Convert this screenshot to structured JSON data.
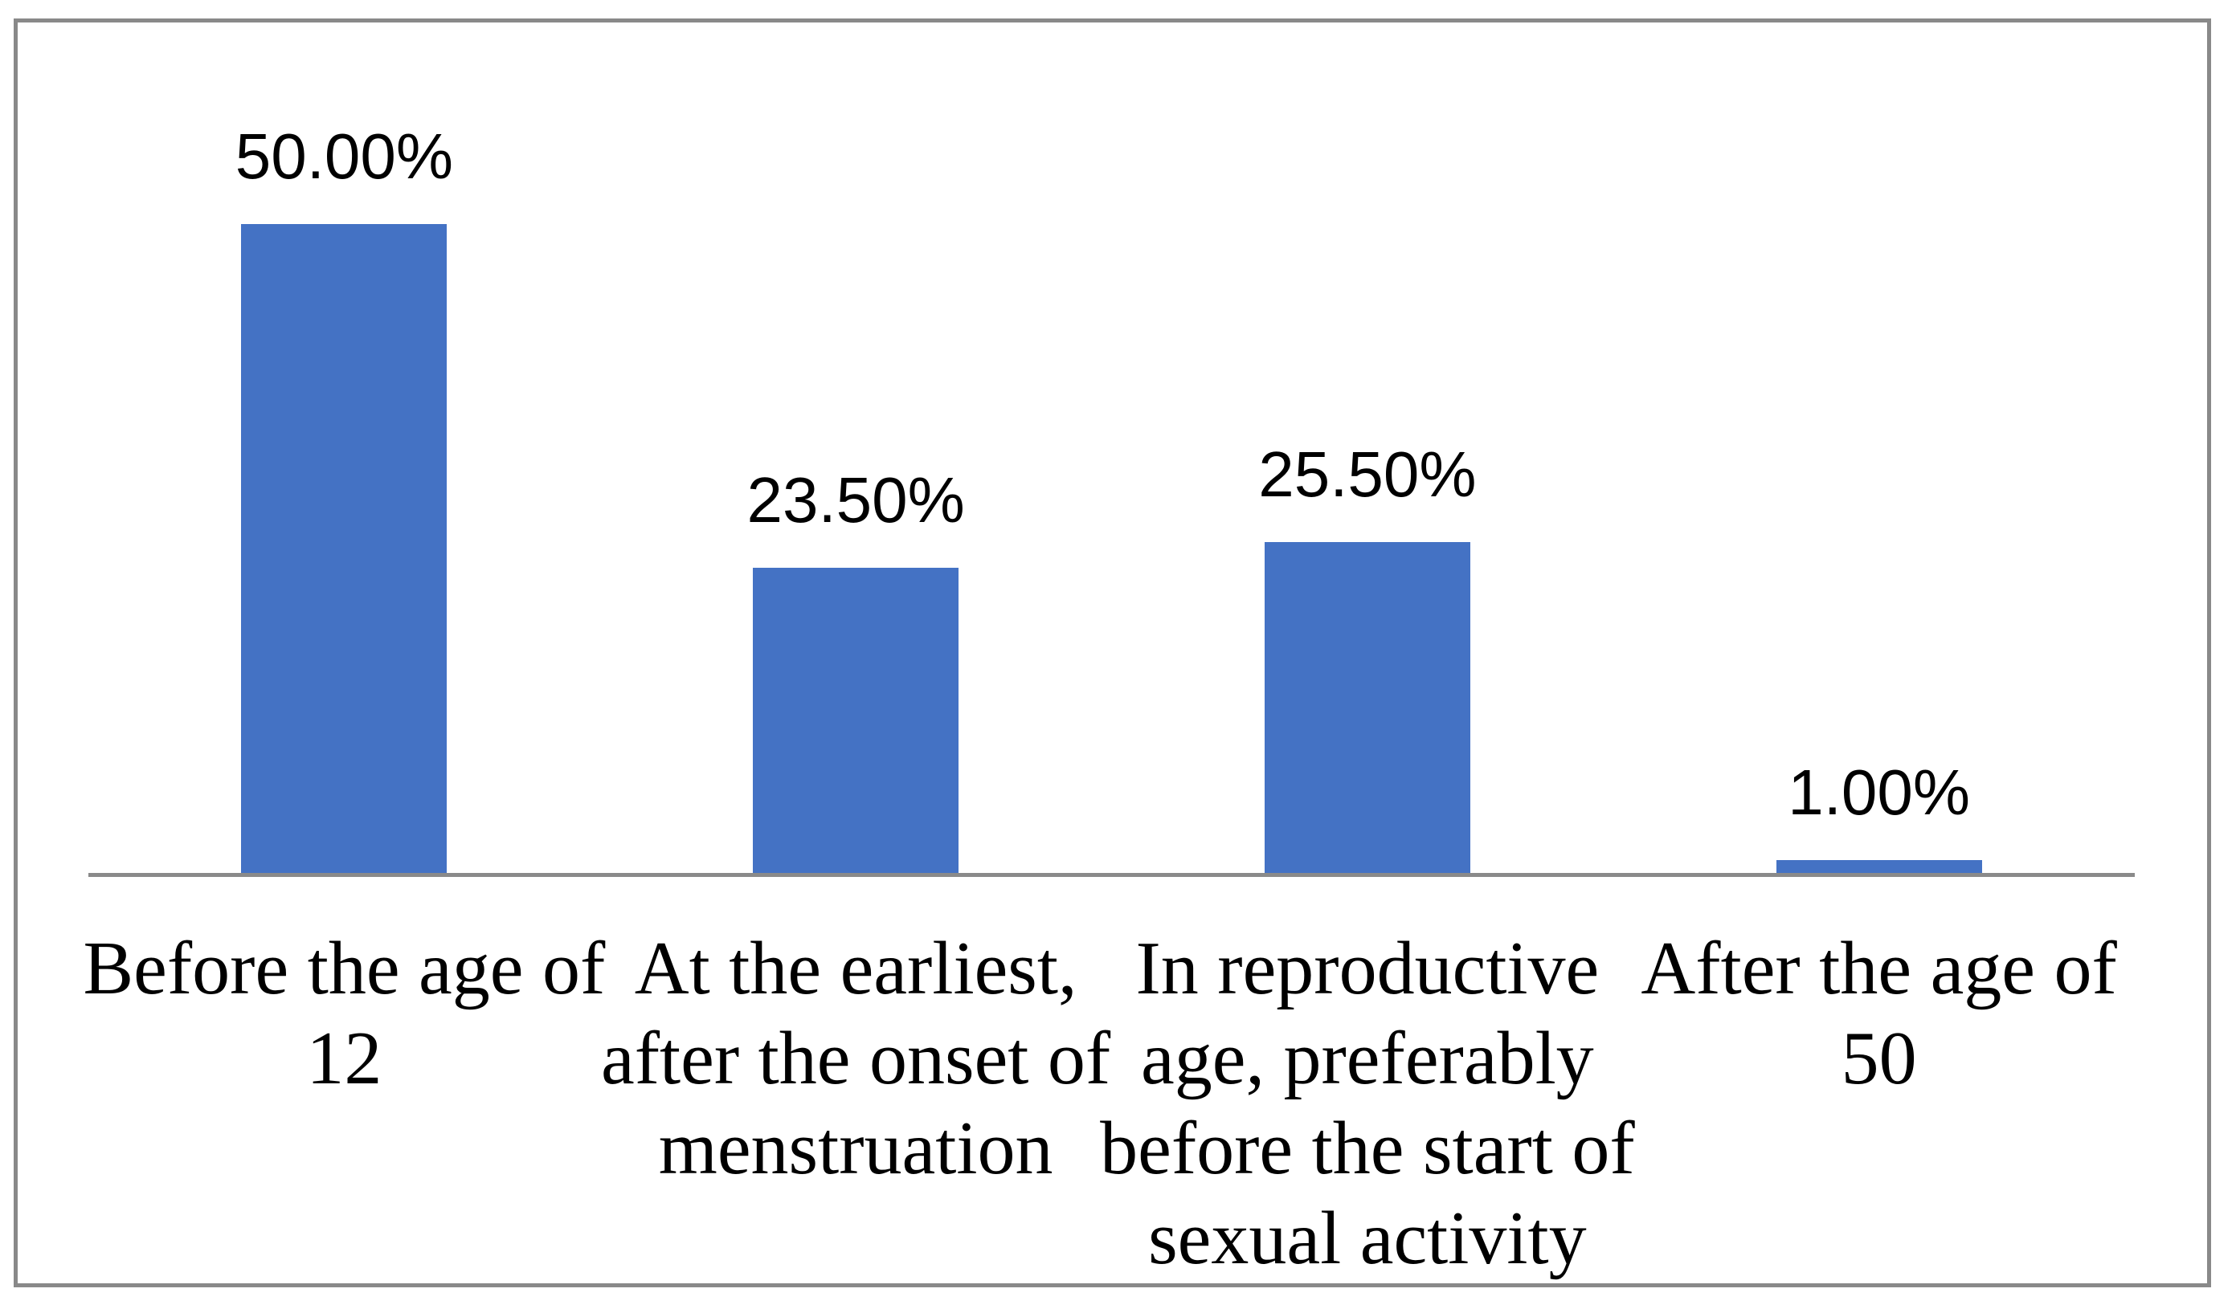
{
  "chart_data": {
    "type": "bar",
    "title": "",
    "xlabel": "",
    "ylabel": "",
    "categories": [
      "Before the age of 12",
      "At the earliest, after the onset of menstruation",
      "In reproductive age, preferably before the start of sexual activity",
      "After the age of 50"
    ],
    "category_lines": [
      [
        "Before the age of",
        "12"
      ],
      [
        "At the earliest,",
        "after the onset of",
        "menstruation"
      ],
      [
        "In reproductive",
        "age, preferably",
        "before the start of",
        "sexual activity"
      ],
      [
        "After the age of 50"
      ]
    ],
    "values": [
      50.0,
      23.5,
      25.5,
      1.0
    ],
    "data_labels": [
      "50.00%",
      "23.50%",
      "25.50%",
      "1.00%"
    ],
    "unit": "%",
    "grid": false,
    "legend": "none",
    "bar_color": "#4472C4",
    "axis_line_color": "#8a8a8a",
    "frame_border_color": "#898989",
    "label_color": "#000000"
  }
}
